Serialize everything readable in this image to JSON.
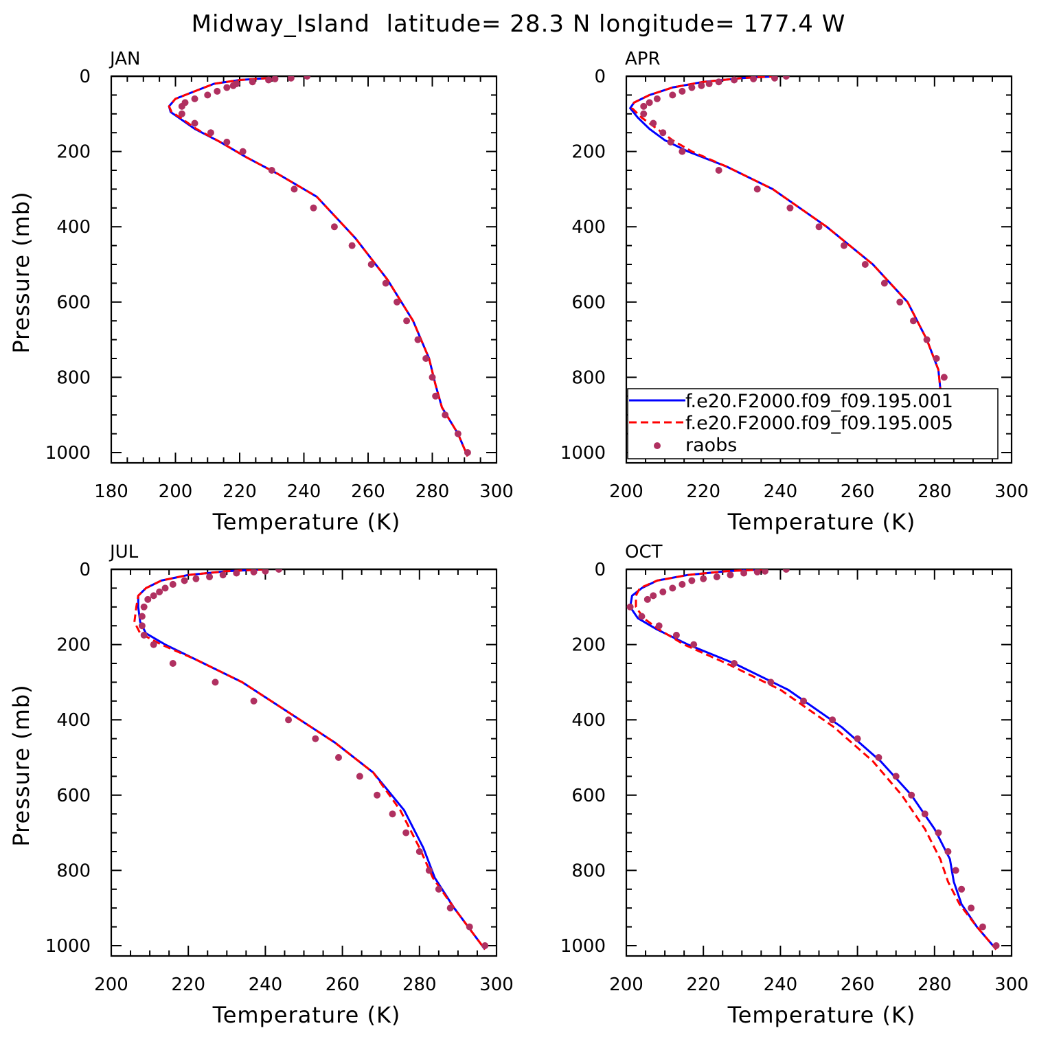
{
  "title": "Midway_Island  latitude= 28.3 N longitude= 177.4 W",
  "legend": {
    "entries": [
      {
        "label": "f.e20.F2000.f09_f09.195.001",
        "color": "#0000ff",
        "style": "solid"
      },
      {
        "label": "f.e20.F2000.f09_f09.195.005",
        "color": "#ff0000",
        "style": "dashed"
      },
      {
        "label": "raobs",
        "color": "#b03060",
        "style": "dots"
      }
    ]
  },
  "chart_data": [
    {
      "type": "line",
      "panel_label": "JAN",
      "xlabel": "Temperature (K)",
      "ylabel": "Pressure (mb)",
      "xlim": [
        180,
        300
      ],
      "ylim": [
        1000,
        0
      ],
      "xticks": [
        180,
        200,
        220,
        240,
        260,
        280,
        300
      ],
      "yticks": [
        0,
        200,
        400,
        600,
        800,
        1000
      ],
      "show_legend": false,
      "series": [
        {
          "name": "f.e20.F2000.f09_f09.195.001",
          "color": "#0000ff",
          "style": "solid",
          "x": [
            229,
            220,
            212,
            206,
            200,
            198,
            198.5,
            201,
            206,
            214,
            222,
            232,
            244,
            256,
            266,
            274,
            279,
            281,
            283,
            288,
            291
          ],
          "y": [
            5,
            10,
            20,
            40,
            60,
            80,
            95,
            110,
            140,
            175,
            215,
            260,
            320,
            430,
            540,
            650,
            750,
            820,
            880,
            950,
            1010
          ]
        },
        {
          "name": "f.e20.F2000.f09_f09.195.005",
          "color": "#ff0000",
          "style": "dashed",
          "x": [
            229,
            220,
            212,
            206,
            200,
            198,
            198.8,
            201.5,
            206.5,
            214,
            222,
            232,
            244,
            256,
            266,
            274,
            279,
            281,
            283,
            288,
            291
          ],
          "y": [
            5,
            10,
            20,
            40,
            60,
            80,
            95,
            110,
            140,
            175,
            215,
            260,
            320,
            430,
            540,
            650,
            750,
            820,
            880,
            950,
            1010
          ]
        },
        {
          "name": "raobs",
          "color": "#b03060",
          "style": "dots",
          "x": [
            241,
            236,
            231,
            229,
            224,
            219,
            218,
            216,
            213,
            210,
            206,
            203,
            202,
            202,
            206,
            211,
            216,
            221,
            230,
            237,
            243,
            249.5,
            255,
            261,
            265.5,
            269,
            272,
            275.5,
            278,
            280,
            281,
            284,
            288,
            291
          ],
          "y": [
            0,
            5,
            7,
            10,
            15,
            20,
            25,
            30,
            40,
            50,
            60,
            70,
            80,
            100,
            125,
            150,
            175,
            200,
            250,
            300,
            350,
            400,
            450,
            500,
            550,
            600,
            650,
            700,
            750,
            800,
            850,
            900,
            950,
            1000
          ]
        }
      ]
    },
    {
      "type": "line",
      "panel_label": "APR",
      "xlabel": "Temperature (K)",
      "ylabel": "",
      "xlim": [
        200,
        300
      ],
      "ylim": [
        1000,
        0
      ],
      "xticks": [
        200,
        220,
        240,
        260,
        280,
        300
      ],
      "yticks": [
        0,
        200,
        400,
        600,
        800,
        1000
      ],
      "show_legend": true,
      "series": [
        {
          "name": "f.e20.F2000.f09_f09.195.001",
          "color": "#0000ff",
          "style": "solid",
          "x": [
            239,
            230,
            220,
            212,
            206,
            202,
            201,
            203,
            206,
            210,
            216,
            226,
            238,
            252,
            264,
            273,
            278,
            281,
            281.5,
            283,
            287,
            291
          ],
          "y": [
            0,
            5,
            15,
            30,
            50,
            70,
            85,
            110,
            140,
            170,
            200,
            240,
            300,
            400,
            500,
            600,
            700,
            780,
            830,
            900,
            960,
            1010
          ]
        },
        {
          "name": "f.e20.F2000.f09_f09.195.005",
          "color": "#ff0000",
          "style": "dashed",
          "x": [
            239,
            230,
            220,
            212,
            206,
            202,
            201.5,
            204,
            208,
            212,
            217,
            226,
            238,
            252,
            264,
            273,
            278,
            281,
            281.5,
            283,
            287,
            291
          ],
          "y": [
            0,
            5,
            15,
            30,
            50,
            70,
            85,
            110,
            140,
            170,
            200,
            240,
            300,
            400,
            500,
            600,
            700,
            780,
            830,
            900,
            960,
            1010
          ]
        },
        {
          "name": "raobs",
          "color": "#b03060",
          "style": "dots",
          "x": [
            241.5,
            238.5,
            233,
            228,
            224,
            221.5,
            219.5,
            217,
            214.5,
            212,
            208,
            206,
            204.5,
            204.5,
            207,
            209.5,
            211.5,
            214.5,
            224,
            234,
            242.5,
            250,
            256.5,
            262,
            267,
            271,
            274.5,
            278,
            280.5,
            282.5,
            282.5,
            284.5,
            287.5,
            291
          ],
          "y": [
            0,
            5,
            7,
            10,
            15,
            20,
            25,
            30,
            40,
            50,
            60,
            70,
            80,
            100,
            125,
            150,
            175,
            200,
            250,
            300,
            350,
            400,
            450,
            500,
            550,
            600,
            650,
            700,
            750,
            800,
            850,
            900,
            950,
            1000
          ]
        }
      ]
    },
    {
      "type": "line",
      "panel_label": "JUL",
      "xlabel": "Temperature (K)",
      "ylabel": "Pressure (mb)",
      "xlim": [
        200,
        300
      ],
      "ylim": [
        1000,
        0
      ],
      "xticks": [
        200,
        220,
        240,
        260,
        280,
        300
      ],
      "yticks": [
        0,
        200,
        400,
        600,
        800,
        1000
      ],
      "show_legend": false,
      "series": [
        {
          "name": "f.e20.F2000.f09_f09.195.001",
          "color": "#0000ff",
          "style": "solid",
          "x": [
            240,
            230,
            220,
            213,
            209,
            207,
            207,
            207.5,
            209,
            214,
            222,
            234,
            246,
            258,
            268,
            276,
            281,
            284,
            289,
            297
          ],
          "y": [
            0,
            5,
            15,
            30,
            50,
            70,
            100,
            140,
            170,
            200,
            240,
            300,
            380,
            460,
            540,
            640,
            740,
            820,
            900,
            1010
          ]
        },
        {
          "name": "f.e20.F2000.f09_f09.195.005",
          "color": "#ff0000",
          "style": "dashed",
          "x": [
            240,
            230,
            220,
            213,
            209,
            207,
            206.5,
            206,
            207.5,
            213,
            222,
            234,
            246,
            258,
            268,
            275,
            280,
            283.5,
            289,
            297
          ],
          "y": [
            0,
            5,
            15,
            30,
            50,
            70,
            100,
            140,
            170,
            200,
            240,
            300,
            380,
            460,
            540,
            640,
            740,
            820,
            900,
            1010
          ]
        },
        {
          "name": "raobs",
          "color": "#b03060",
          "style": "dots",
          "x": [
            243.5,
            240,
            237,
            232.5,
            229,
            225.5,
            222,
            219,
            216,
            214,
            212.5,
            211,
            209.5,
            208.5,
            208,
            208,
            208.5,
            211,
            216,
            227,
            237,
            246,
            253,
            259,
            264.5,
            269,
            273,
            276.5,
            280,
            282.5,
            285,
            288,
            293,
            297
          ],
          "y": [
            0,
            5,
            7,
            10,
            15,
            20,
            25,
            30,
            40,
            50,
            60,
            70,
            80,
            100,
            125,
            150,
            175,
            200,
            250,
            300,
            350,
            400,
            450,
            500,
            550,
            600,
            650,
            700,
            750,
            800,
            850,
            900,
            950,
            1000
          ]
        }
      ]
    },
    {
      "type": "line",
      "panel_label": "OCT",
      "xlabel": "Temperature (K)",
      "ylabel": "",
      "xlim": [
        200,
        300
      ],
      "ylim": [
        1000,
        0
      ],
      "xticks": [
        200,
        220,
        240,
        260,
        280,
        300
      ],
      "yticks": [
        0,
        200,
        400,
        600,
        800,
        1000
      ],
      "show_legend": false,
      "series": [
        {
          "name": "f.e20.F2000.f09_f09.195.001",
          "color": "#0000ff",
          "style": "solid",
          "x": [
            236,
            226,
            216,
            208,
            204,
            201.5,
            201,
            203,
            208,
            216,
            228,
            242,
            256,
            266,
            274,
            280,
            284,
            285,
            287,
            291,
            296
          ],
          "y": [
            0,
            5,
            15,
            30,
            50,
            70,
            100,
            130,
            160,
            200,
            250,
            320,
            420,
            510,
            600,
            690,
            770,
            830,
            890,
            950,
            1010
          ]
        },
        {
          "name": "f.e20.F2000.f09_f09.195.005",
          "color": "#ff0000",
          "style": "dashed",
          "x": [
            236,
            226,
            216,
            208,
            203.5,
            202.5,
            202.5,
            204.5,
            208.5,
            215,
            226,
            240,
            254,
            264,
            271.5,
            277.5,
            281.5,
            283.5,
            286.5,
            291,
            296
          ],
          "y": [
            0,
            5,
            15,
            30,
            50,
            70,
            100,
            130,
            160,
            200,
            250,
            320,
            420,
            510,
            600,
            690,
            770,
            830,
            890,
            950,
            1010
          ]
        },
        {
          "name": "raobs",
          "color": "#b03060",
          "style": "dots",
          "x": [
            241.5,
            236,
            234,
            230.5,
            227,
            223.5,
            220,
            217,
            214.5,
            212,
            209.5,
            207,
            205.5,
            201,
            204,
            208.5,
            213,
            217.5,
            228,
            237.5,
            246,
            253.5,
            260,
            265.5,
            270,
            274,
            277.5,
            281,
            283.5,
            285.5,
            287,
            289.5,
            292.5,
            296
          ],
          "y": [
            0,
            5,
            7,
            10,
            15,
            20,
            25,
            30,
            40,
            50,
            60,
            70,
            80,
            100,
            125,
            150,
            175,
            200,
            250,
            300,
            350,
            400,
            450,
            500,
            550,
            600,
            650,
            700,
            750,
            800,
            850,
            900,
            950,
            1000
          ]
        }
      ]
    }
  ]
}
